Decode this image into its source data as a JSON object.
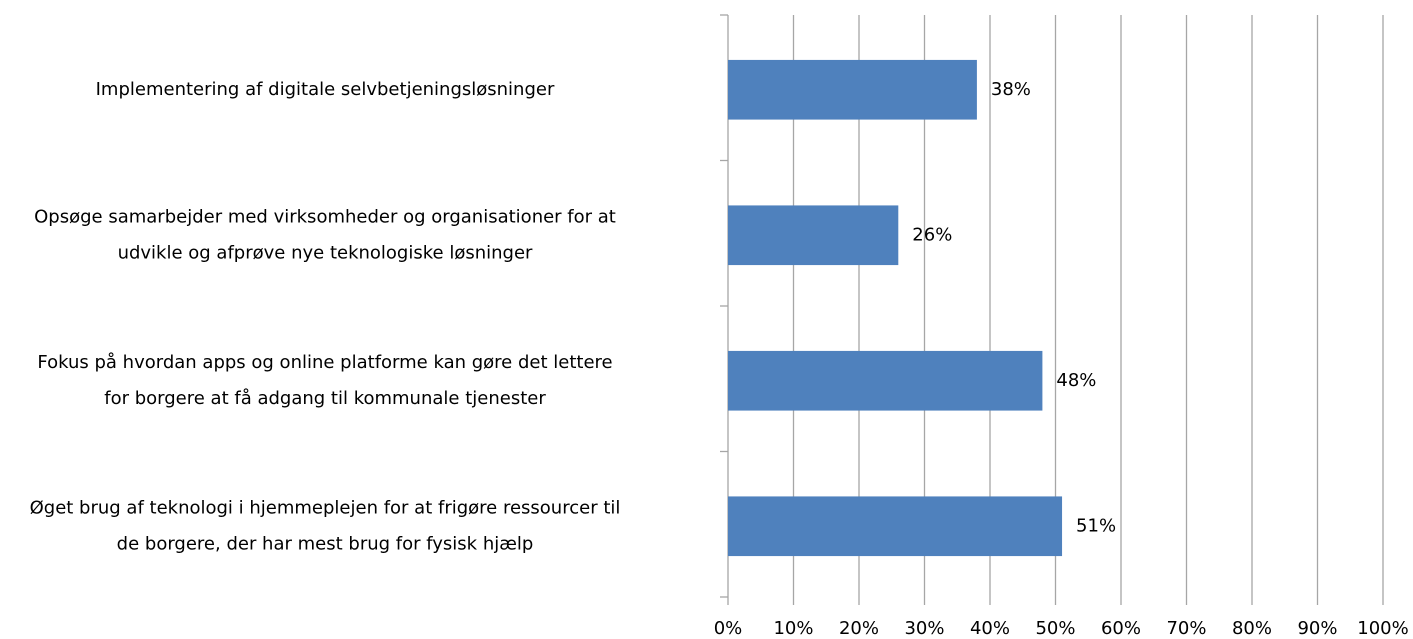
{
  "chart_data": {
    "type": "barh",
    "categories": [
      [
        "Implementering af digitale selvbetjeningsløsninger"
      ],
      [
        "Opsøge samarbejder med virksomheder og organisationer for at",
        "udvikle og afprøve nye teknologiske løsninger"
      ],
      [
        "Fokus på hvordan apps og online platforme kan gøre det lettere",
        "for borgere at få adgang til kommunale tjenester"
      ],
      [
        "Øget brug af teknologi i hjemmeplejen for at frigøre ressourcer til",
        "de borgere, der har mest brug for fysisk hjælp"
      ]
    ],
    "values": [
      38,
      26,
      48,
      51
    ],
    "value_labels": [
      "38%",
      "26%",
      "48%",
      "51%"
    ],
    "color": "#4f81bd",
    "xlim": [
      0,
      100
    ],
    "xticks": [
      {
        "value": 0,
        "label": "0%"
      },
      {
        "value": 10,
        "label": "10%"
      },
      {
        "value": 20,
        "label": "20%"
      },
      {
        "value": 30,
        "label": "30%"
      },
      {
        "value": 40,
        "label": "40%"
      },
      {
        "value": 50,
        "label": "50%"
      },
      {
        "value": 60,
        "label": "60%"
      },
      {
        "value": 70,
        "label": "70%"
      },
      {
        "value": 80,
        "label": "80%"
      },
      {
        "value": 90,
        "label": "90%"
      },
      {
        "value": 100,
        "label": "100%"
      }
    ],
    "grid": true
  }
}
